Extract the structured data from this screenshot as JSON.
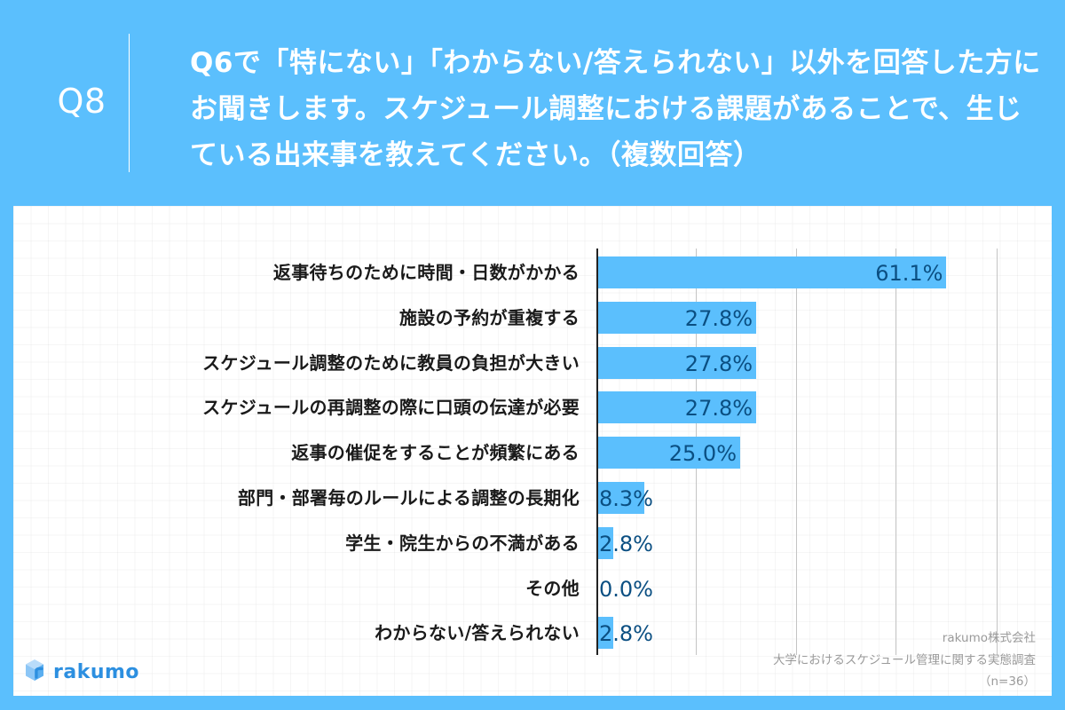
{
  "header": {
    "question_number": "Q8",
    "question_text": "Q6で「特にない」「わからない/答えられない」以外を回答した方にお聞きします。スケジュール調整における課題があることで、生じている出来事を教えてください。（複数回答）"
  },
  "colors": {
    "background": "#5bbffd",
    "bar": "#5bbffd",
    "value_text": "#0b4f82",
    "label_text": "#1a1a1a",
    "source_text": "#9a9a9a",
    "logo": "#2c8fe0"
  },
  "chart_data": {
    "type": "bar",
    "orientation": "horizontal",
    "title": "Q6で「特にない」「わからない/答えられない」以外を回答した方にお聞きします。スケジュール調整における課題があることで、生じている出来事を教えてください。（複数回答）",
    "categories": [
      "返事待ちのために時間・日数がかかる",
      "施設の予約が重複する",
      "スケジュール調整のために教員の負担が大きい",
      "スケジュールの再調整の際に口頭の伝達が必要",
      "返事の催促をすることが頻繁にある",
      "部門・部署毎のルールによる調整の長期化",
      "学生・院生からの不満がある",
      "その他",
      "わからない/答えられない"
    ],
    "values": [
      61.1,
      27.8,
      27.8,
      27.8,
      25.0,
      8.3,
      2.8,
      0.0,
      2.8
    ],
    "value_labels": [
      "61.1%",
      "27.8%",
      "27.8%",
      "27.8%",
      "25.0%",
      "8.3%",
      "2.8%",
      "0.0%",
      "2.8%"
    ],
    "xlabel": "",
    "ylabel": "",
    "unit": "%",
    "grid": true,
    "legend": "none",
    "sample_size": "n=36"
  },
  "source": {
    "company": "rakumo株式会社",
    "survey": "大学におけるスケジュール管理に関する実態調査",
    "sample": "（n=36）"
  },
  "logo": {
    "text": "rakumo",
    "icon": "cube-icon"
  }
}
